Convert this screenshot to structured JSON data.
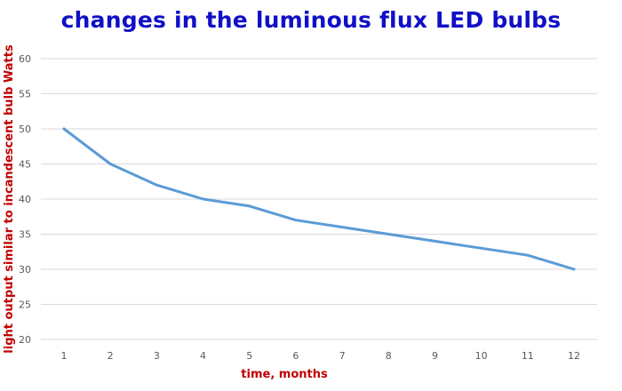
{
  "chart_data": {
    "type": "line",
    "title": "changes in the luminous flux LED bulbs",
    "xlabel": "time, months",
    "ylabel": "light output similar to incandescent bulb Watts",
    "x": [
      1,
      2,
      3,
      4,
      5,
      6,
      7,
      8,
      9,
      10,
      11,
      12
    ],
    "categories": [
      "1",
      "2",
      "3",
      "4",
      "5",
      "6",
      "7",
      "8",
      "9",
      "10",
      "11",
      "12"
    ],
    "series": [
      {
        "values": [
          50,
          45,
          42,
          40,
          39,
          37,
          36,
          35,
          34,
          33,
          32,
          30
        ]
      }
    ],
    "ylim": [
      20,
      60
    ],
    "yticks": [
      20,
      25,
      30,
      35,
      40,
      45,
      50,
      55,
      60
    ],
    "ytick_labels": [
      "20",
      "25",
      "30",
      "35",
      "40",
      "45",
      "50",
      "55",
      "60"
    ],
    "grid": true,
    "legend": "none",
    "colors": {
      "title": "#1010c8",
      "axis_title": "#c00000",
      "line": "#5b9bd5",
      "grid": "#d9d9d9",
      "tick_text": "#595959"
    }
  }
}
